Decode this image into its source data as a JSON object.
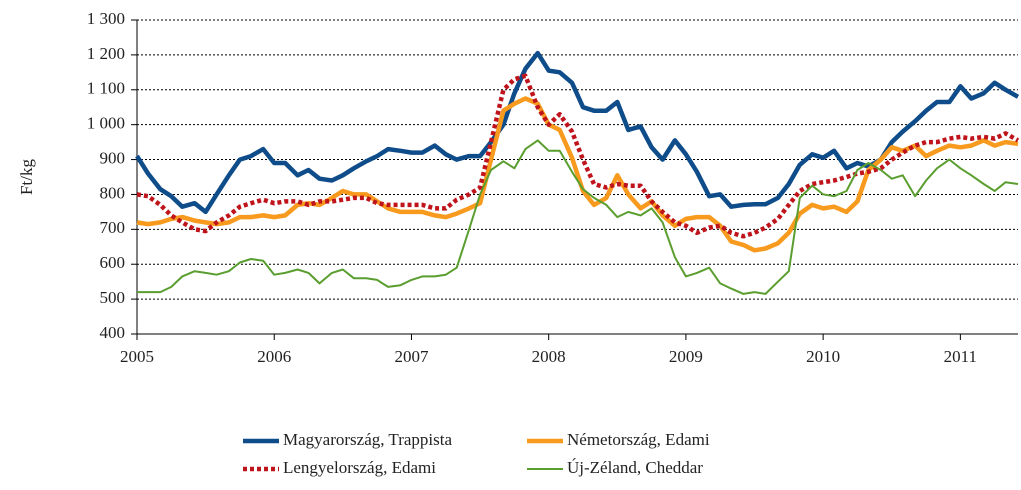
{
  "chart_data": {
    "type": "line",
    "y_label": "Ft/kg",
    "x": [
      2005,
      2005.08,
      2005.17,
      2005.25,
      2005.33,
      2005.42,
      2005.5,
      2005.58,
      2005.67,
      2005.75,
      2005.83,
      2005.92,
      2006,
      2006.08,
      2006.17,
      2006.25,
      2006.33,
      2006.42,
      2006.5,
      2006.58,
      2006.67,
      2006.75,
      2006.83,
      2006.92,
      2007,
      2007.08,
      2007.17,
      2007.25,
      2007.33,
      2007.42,
      2007.5,
      2007.58,
      2007.67,
      2007.75,
      2007.83,
      2007.92,
      2008,
      2008.08,
      2008.17,
      2008.25,
      2008.33,
      2008.42,
      2008.5,
      2008.58,
      2008.67,
      2008.75,
      2008.83,
      2008.92,
      2009,
      2009.08,
      2009.17,
      2009.25,
      2009.33,
      2009.42,
      2009.5,
      2009.58,
      2009.67,
      2009.75,
      2009.83,
      2009.92,
      2010,
      2010.08,
      2010.17,
      2010.25,
      2010.33,
      2010.42,
      2010.5,
      2010.58,
      2010.67,
      2010.75,
      2010.83,
      2010.92,
      2011,
      2011.08,
      2011.17,
      2011.25,
      2011.33,
      2011.42
    ],
    "xlim": [
      2005,
      2011.42
    ],
    "xticks": [
      2005,
      2006,
      2007,
      2008,
      2009,
      2010,
      2011
    ],
    "ylim": [
      400,
      1300
    ],
    "yticks": [
      400,
      500,
      600,
      700,
      800,
      900,
      {
        "value": 1000,
        "label": "1 000"
      },
      {
        "value": 1100,
        "label": "1 100"
      },
      {
        "value": 1200,
        "label": "1 200"
      },
      {
        "value": 1300,
        "label": "1 300"
      }
    ],
    "grid": true,
    "series": [
      {
        "name": "Magyarország, Trappista",
        "color": "#0f4c8a",
        "width": 4.5,
        "dash": false,
        "values": [
          910,
          860,
          815,
          795,
          765,
          775,
          750,
          800,
          855,
          900,
          910,
          930,
          890,
          890,
          855,
          870,
          845,
          840,
          855,
          875,
          895,
          910,
          930,
          925,
          920,
          920,
          940,
          915,
          900,
          910,
          910,
          950,
          1000,
          1090,
          1160,
          1205,
          1155,
          1150,
          1120,
          1050,
          1040,
          1040,
          1065,
          985,
          995,
          935,
          900,
          955,
          915,
          865,
          795,
          800,
          765,
          770,
          772,
          772,
          790,
          830,
          885,
          915,
          905,
          925,
          875,
          890,
          880,
          900,
          950,
          980,
          1010,
          1040,
          1065,
          1065,
          1110,
          1075,
          1090,
          1120,
          1100,
          1080
        ]
      },
      {
        "name": "Németország, Edami",
        "color": "#f79a1e",
        "width": 4.5,
        "dash": false,
        "values": [
          720,
          715,
          720,
          730,
          735,
          725,
          720,
          715,
          720,
          735,
          735,
          740,
          735,
          740,
          770,
          775,
          770,
          790,
          810,
          800,
          800,
          780,
          760,
          750,
          750,
          750,
          740,
          735,
          745,
          760,
          775,
          900,
          1040,
          1060,
          1075,
          1060,
          1000,
          985,
          905,
          810,
          770,
          790,
          855,
          800,
          760,
          780,
          740,
          710,
          730,
          735,
          735,
          710,
          665,
          655,
          640,
          645,
          660,
          690,
          745,
          770,
          760,
          765,
          750,
          780,
          870,
          900,
          935,
          925,
          940,
          910,
          925,
          940,
          935,
          940,
          955,
          940,
          950,
          945
        ]
      },
      {
        "name": "Lengyelország, Edami",
        "color": "#c0141c",
        "width": 4.5,
        "dash": true,
        "values": [
          800,
          795,
          770,
          740,
          720,
          700,
          695,
          720,
          740,
          765,
          775,
          785,
          775,
          780,
          780,
          770,
          780,
          780,
          785,
          790,
          790,
          775,
          770,
          770,
          770,
          770,
          760,
          760,
          785,
          800,
          820,
          950,
          1100,
          1130,
          1140,
          1050,
          1000,
          1030,
          980,
          900,
          830,
          820,
          830,
          825,
          825,
          780,
          750,
          720,
          710,
          690,
          705,
          710,
          690,
          680,
          690,
          705,
          730,
          770,
          810,
          830,
          835,
          840,
          850,
          860,
          865,
          875,
          900,
          920,
          940,
          950,
          950,
          960,
          965,
          960,
          965,
          960,
          975,
          955
        ]
      },
      {
        "name": "Új-Zéland, Cheddar",
        "color": "#5a9e2f",
        "width": 2,
        "dash": false,
        "values": [
          520,
          520,
          520,
          535,
          565,
          580,
          575,
          570,
          580,
          605,
          615,
          610,
          570,
          575,
          585,
          575,
          545,
          575,
          585,
          560,
          560,
          555,
          535,
          540,
          555,
          565,
          565,
          570,
          590,
          700,
          800,
          870,
          895,
          875,
          930,
          955,
          925,
          925,
          865,
          815,
          790,
          770,
          735,
          750,
          740,
          760,
          720,
          620,
          565,
          575,
          590,
          545,
          530,
          515,
          520,
          515,
          550,
          580,
          790,
          825,
          800,
          795,
          810,
          870,
          890,
          870,
          845,
          855,
          795,
          840,
          875,
          900,
          875,
          855,
          830,
          810,
          835,
          830
        ]
      }
    ]
  }
}
